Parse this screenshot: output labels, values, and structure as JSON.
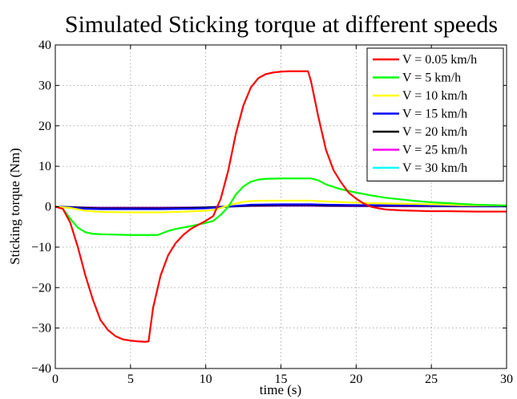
{
  "chart_data": {
    "type": "line",
    "title": "Simulated Sticking torque at different speeds",
    "xlabel": "time (s)",
    "ylabel": "Sticking torque (Nm)",
    "xlim": [
      0,
      30
    ],
    "ylim": [
      -40,
      40
    ],
    "xticks": [
      0,
      5,
      10,
      15,
      20,
      25,
      30
    ],
    "yticks": [
      -40,
      -30,
      -20,
      -10,
      0,
      10,
      20,
      30,
      40
    ],
    "grid": true,
    "legend_position": "top-right",
    "series": [
      {
        "name": "V = 0.05 km/h",
        "color": "#ff0000",
        "x": [
          0,
          0.5,
          1,
          1.5,
          2,
          2.5,
          3,
          3.5,
          4,
          4.5,
          5,
          5.5,
          6,
          6.2,
          6.5,
          7,
          7.5,
          8,
          8.5,
          9,
          9.5,
          10,
          10.5,
          11,
          11.5,
          12,
          12.5,
          13,
          13.5,
          14,
          14.5,
          15,
          15.5,
          16,
          16.5,
          16.8,
          17,
          17.5,
          18,
          18.5,
          19,
          19.5,
          20,
          20.5,
          21,
          21.5,
          22,
          23,
          24,
          25,
          26,
          28,
          30
        ],
        "y": [
          0,
          -0.5,
          -4,
          -10,
          -17,
          -23,
          -28,
          -30.5,
          -32,
          -32.8,
          -33.1,
          -33.3,
          -33.4,
          -33.3,
          -25,
          -17,
          -12,
          -9,
          -7,
          -5.5,
          -4.5,
          -3.5,
          -2.3,
          2,
          9,
          18,
          25,
          29.5,
          31.8,
          32.8,
          33.2,
          33.4,
          33.5,
          33.5,
          33.5,
          33.5,
          31,
          22,
          14,
          9,
          6,
          3.5,
          2,
          0.8,
          0,
          -0.4,
          -0.7,
          -0.9,
          -1.0,
          -1.1,
          -1.1,
          -1.2,
          -1.2
        ]
      },
      {
        "name": "V = 5 km/h",
        "color": "#00ff00",
        "x": [
          0,
          0.5,
          1,
          1.5,
          2,
          2.5,
          3,
          4,
          5,
          6,
          6.8,
          7.5,
          8,
          9,
          10,
          10.5,
          11,
          11.5,
          12,
          12.5,
          13,
          13.5,
          14,
          15,
          16,
          17,
          17.5,
          18,
          19,
          20,
          21,
          22,
          23,
          24,
          25,
          26,
          27,
          28,
          29,
          30
        ],
        "y": [
          0,
          -0.5,
          -3,
          -5.2,
          -6.3,
          -6.7,
          -6.8,
          -6.9,
          -7,
          -7,
          -7,
          -6,
          -5.5,
          -4.8,
          -4,
          -3.5,
          -2,
          0,
          3,
          5,
          6.2,
          6.7,
          6.9,
          7,
          7,
          7,
          6.5,
          5.5,
          4.3,
          3.5,
          2.8,
          2.2,
          1.8,
          1.4,
          1.1,
          0.9,
          0.7,
          0.5,
          0.4,
          0.3
        ]
      },
      {
        "name": "V = 10 km/h",
        "color": "#ffff00",
        "x": [
          0,
          1,
          2,
          3,
          5,
          7,
          8,
          10,
          10.5,
          11,
          11.5,
          12,
          12.5,
          13,
          14,
          15,
          17,
          18,
          20,
          22,
          25,
          27,
          30
        ],
        "y": [
          0,
          -0.3,
          -1,
          -1.3,
          -1.4,
          -1.4,
          -1.3,
          -1.0,
          -0.8,
          -0.3,
          0.3,
          0.8,
          1.2,
          1.4,
          1.5,
          1.5,
          1.5,
          1.3,
          1.0,
          0.8,
          0.6,
          0.4,
          0.3
        ]
      },
      {
        "name": "V = 15 km/h",
        "color": "#0000ff",
        "x": [
          0,
          1,
          2,
          3,
          5,
          7,
          9,
          10,
          11,
          12,
          13,
          15,
          17,
          18,
          20,
          25,
          30
        ],
        "y": [
          0,
          -0.2,
          -0.5,
          -0.6,
          -0.6,
          -0.6,
          -0.5,
          -0.4,
          -0.1,
          0.2,
          0.5,
          0.6,
          0.6,
          0.5,
          0.4,
          0.3,
          0.2
        ]
      },
      {
        "name": "V = 20 km/h",
        "color": "#000000",
        "x": [
          0,
          1,
          2,
          3,
          5,
          7,
          9,
          10,
          11,
          12,
          13,
          15,
          17,
          18,
          20,
          25,
          30
        ],
        "y": [
          0,
          -0.1,
          -0.3,
          -0.4,
          -0.4,
          -0.4,
          -0.3,
          -0.2,
          -0.05,
          0.1,
          0.3,
          0.4,
          0.4,
          0.3,
          0.25,
          0.2,
          0.15
        ]
      },
      {
        "name": "V = 25 km/h",
        "color": "#ff00ff",
        "x": [
          0,
          2,
          3,
          5,
          7,
          9,
          10,
          11,
          12,
          13,
          15,
          17,
          18,
          20,
          25,
          30
        ],
        "y": [
          0,
          -0.2,
          -0.25,
          -0.25,
          -0.25,
          -0.2,
          -0.15,
          0,
          0.1,
          0.2,
          0.25,
          0.25,
          0.2,
          0.15,
          0.1,
          0.1
        ]
      },
      {
        "name": "V = 30 km/h",
        "color": "#00ffff",
        "x": [
          0,
          2,
          3,
          5,
          7,
          9,
          10,
          11,
          12,
          13,
          15,
          17,
          18,
          20,
          25,
          30
        ],
        "y": [
          0,
          -0.15,
          -0.2,
          -0.2,
          -0.2,
          -0.15,
          -0.1,
          0,
          0.1,
          0.15,
          0.2,
          0.2,
          0.15,
          0.1,
          0.08,
          0.05
        ]
      }
    ]
  }
}
